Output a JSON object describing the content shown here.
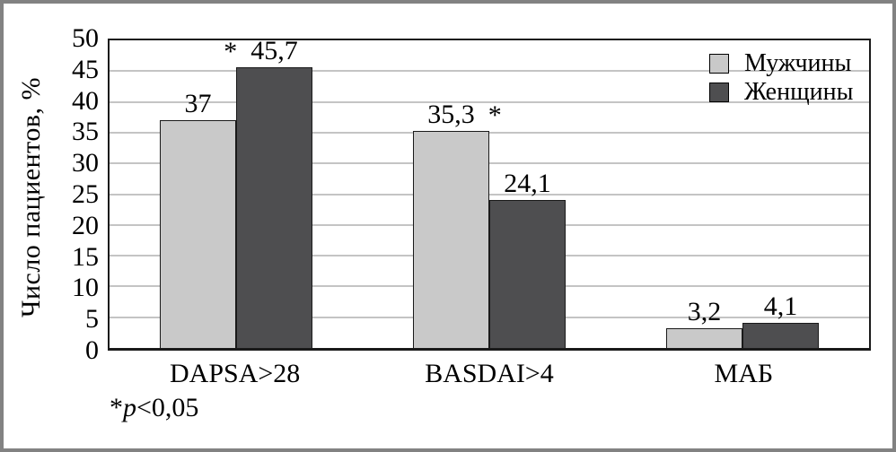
{
  "chart_data": {
    "type": "bar",
    "title": "",
    "categories": [
      "DAPSA>28",
      "BASDAI>4",
      "МАБ"
    ],
    "series": [
      {
        "name": "Мужчины",
        "color": "#c9c9c9",
        "values": [
          37,
          35.3,
          3.2
        ],
        "value_labels": [
          "37",
          "35,3",
          "3,2"
        ],
        "significance_stars": [
          null,
          "right",
          null
        ]
      },
      {
        "name": "Женщины",
        "color": "#4e4e50",
        "values": [
          45.7,
          24.1,
          4.1
        ],
        "value_labels": [
          "45,7",
          "24,1",
          "4,1"
        ],
        "significance_stars": [
          "left",
          null,
          null
        ]
      }
    ],
    "xlabel": "",
    "ylabel": "Число пациентов, %",
    "ylim": [
      0,
      50
    ],
    "yticks": [
      0,
      5,
      10,
      15,
      20,
      25,
      30,
      35,
      40,
      45,
      50
    ],
    "grid": "horizontal",
    "legend_position": "top-right-inside",
    "footnote": {
      "star": "*",
      "p": "p",
      "rest": "<0,05"
    },
    "colors": {
      "gridline": "#c4c4c4",
      "axis": "#1a1a1a",
      "frame_border": "#828282",
      "background": "#ffffff"
    }
  }
}
